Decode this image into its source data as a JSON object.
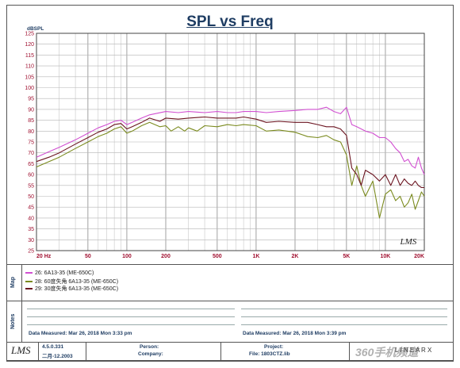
{
  "chart_data": {
    "type": "line",
    "title": "SPL vs Freq",
    "ylabel": "dBSPL",
    "xscale": "log",
    "xlim": [
      20,
      20000
    ],
    "ylim": [
      25,
      125
    ],
    "y_ticks": [
      125,
      120,
      115,
      110,
      105,
      100,
      95,
      90,
      85,
      80,
      75,
      70,
      65,
      60,
      55,
      50,
      45,
      40,
      35,
      30,
      25
    ],
    "x_ticks": [
      {
        "value": 20,
        "label": "20 Hz"
      },
      {
        "value": 50,
        "label": "50"
      },
      {
        "value": 100,
        "label": "100"
      },
      {
        "value": 200,
        "label": "200"
      },
      {
        "value": 500,
        "label": "500"
      },
      {
        "value": 1000,
        "label": "1K"
      },
      {
        "value": 2000,
        "label": "2K"
      },
      {
        "value": 5000,
        "label": "5K"
      },
      {
        "value": 10000,
        "label": "10K"
      },
      {
        "value": 20000,
        "label": "20K"
      }
    ],
    "grid": true,
    "series": [
      {
        "name": "26: 6A13-35  (ME-650C)",
        "color": "#d14fd1",
        "points": [
          [
            20,
            68
          ],
          [
            25,
            70.5
          ],
          [
            30,
            72.5
          ],
          [
            40,
            76
          ],
          [
            50,
            79
          ],
          [
            60,
            81.5
          ],
          [
            70,
            83
          ],
          [
            80,
            84.5
          ],
          [
            90,
            85
          ],
          [
            100,
            83
          ],
          [
            110,
            84
          ],
          [
            130,
            86
          ],
          [
            150,
            87.5
          ],
          [
            200,
            89
          ],
          [
            250,
            88.5
          ],
          [
            300,
            89
          ],
          [
            400,
            88.5
          ],
          [
            500,
            89
          ],
          [
            600,
            88.5
          ],
          [
            700,
            88.5
          ],
          [
            800,
            89
          ],
          [
            1000,
            89
          ],
          [
            1200,
            88.5
          ],
          [
            1500,
            89
          ],
          [
            2000,
            89.5
          ],
          [
            2500,
            90
          ],
          [
            3000,
            90
          ],
          [
            3500,
            91
          ],
          [
            4000,
            89
          ],
          [
            4500,
            88
          ],
          [
            5000,
            91
          ],
          [
            5500,
            83
          ],
          [
            6000,
            82
          ],
          [
            7000,
            80
          ],
          [
            8000,
            79
          ],
          [
            9000,
            77
          ],
          [
            10000,
            77
          ],
          [
            11000,
            75
          ],
          [
            12000,
            72
          ],
          [
            13000,
            70
          ],
          [
            14000,
            66
          ],
          [
            15000,
            67
          ],
          [
            16000,
            64
          ],
          [
            17000,
            63
          ],
          [
            18000,
            68
          ],
          [
            19000,
            63
          ],
          [
            20000,
            60
          ]
        ]
      },
      {
        "name": "28: 60度失角 6A13-35  (ME-650C)",
        "color": "#7a8a1e",
        "points": [
          [
            20,
            63.5
          ],
          [
            25,
            66
          ],
          [
            30,
            68
          ],
          [
            40,
            72
          ],
          [
            50,
            75
          ],
          [
            60,
            77.5
          ],
          [
            70,
            79
          ],
          [
            80,
            81
          ],
          [
            90,
            82
          ],
          [
            100,
            79
          ],
          [
            110,
            80
          ],
          [
            130,
            82.5
          ],
          [
            150,
            84
          ],
          [
            180,
            82
          ],
          [
            200,
            82.5
          ],
          [
            220,
            80
          ],
          [
            250,
            82
          ],
          [
            280,
            80
          ],
          [
            300,
            81.5
          ],
          [
            350,
            80
          ],
          [
            400,
            82.5
          ],
          [
            500,
            82
          ],
          [
            600,
            83
          ],
          [
            700,
            82.5
          ],
          [
            800,
            83
          ],
          [
            1000,
            82.5
          ],
          [
            1200,
            80
          ],
          [
            1500,
            80.5
          ],
          [
            2000,
            79.5
          ],
          [
            2500,
            77.5
          ],
          [
            3000,
            77
          ],
          [
            3500,
            78
          ],
          [
            4000,
            76
          ],
          [
            4500,
            75
          ],
          [
            5000,
            69
          ],
          [
            5500,
            55
          ],
          [
            6000,
            64
          ],
          [
            6500,
            55
          ],
          [
            7000,
            50
          ],
          [
            8000,
            57
          ],
          [
            9000,
            40
          ],
          [
            10000,
            51
          ],
          [
            11000,
            53
          ],
          [
            12000,
            48
          ],
          [
            13000,
            50
          ],
          [
            14000,
            45
          ],
          [
            15000,
            47
          ],
          [
            16000,
            51
          ],
          [
            17000,
            44
          ],
          [
            18000,
            48
          ],
          [
            19000,
            52
          ],
          [
            20000,
            50
          ]
        ]
      },
      {
        "name": "29: 30度失角 6A13-35  (ME-650C)",
        "color": "#6b1420",
        "points": [
          [
            20,
            66
          ],
          [
            25,
            68
          ],
          [
            30,
            70
          ],
          [
            40,
            74
          ],
          [
            50,
            77
          ],
          [
            60,
            79.5
          ],
          [
            70,
            81
          ],
          [
            80,
            83
          ],
          [
            90,
            83.5
          ],
          [
            100,
            81
          ],
          [
            110,
            82
          ],
          [
            130,
            84
          ],
          [
            150,
            86
          ],
          [
            180,
            84.5
          ],
          [
            200,
            86
          ],
          [
            250,
            85.5
          ],
          [
            300,
            86
          ],
          [
            400,
            86.5
          ],
          [
            500,
            86
          ],
          [
            600,
            86
          ],
          [
            700,
            86
          ],
          [
            800,
            86.5
          ],
          [
            1000,
            85.5
          ],
          [
            1200,
            84
          ],
          [
            1500,
            84.5
          ],
          [
            2000,
            84
          ],
          [
            2500,
            84
          ],
          [
            3000,
            83
          ],
          [
            3500,
            82
          ],
          [
            4000,
            82
          ],
          [
            4500,
            81
          ],
          [
            5000,
            78
          ],
          [
            5500,
            63
          ],
          [
            6000,
            60
          ],
          [
            6500,
            55
          ],
          [
            7000,
            62
          ],
          [
            8000,
            60
          ],
          [
            9000,
            57
          ],
          [
            10000,
            60
          ],
          [
            11000,
            55
          ],
          [
            12000,
            60
          ],
          [
            13000,
            55
          ],
          [
            14000,
            58
          ],
          [
            15000,
            56
          ],
          [
            16000,
            55
          ],
          [
            17000,
            57
          ],
          [
            18000,
            55
          ],
          [
            19000,
            54
          ],
          [
            20000,
            54
          ]
        ]
      }
    ]
  },
  "lms_mark": "LMS",
  "side_labels": {
    "map": "Map",
    "notes": "Notes"
  },
  "notes": {
    "left": "Data Measured: Mar 26, 2018  Mon  3:33 pm",
    "right": "Data Measured: Mar 26, 2018  Mon  3:39 pm"
  },
  "footer": {
    "logo": "LMS",
    "version": "4.5.0.331",
    "date": "二月-12.2003",
    "person_label": "Person:",
    "company_label": "Company:",
    "project_label": "Project:",
    "file_label": "File: 1803CTZ.lib",
    "brand": "L I N E A R X",
    "watermark": "360手机频道"
  }
}
